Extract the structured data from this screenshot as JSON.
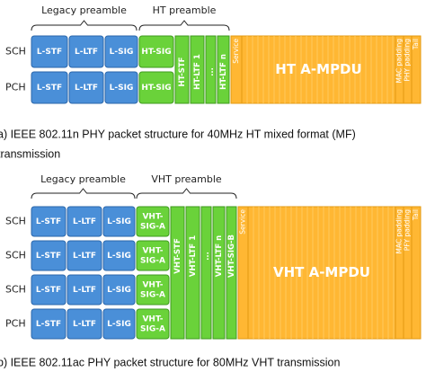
{
  "panels": [
    {
      "preamble_labels": [
        "Legacy preamble",
        "HT preamble"
      ],
      "rows": [
        "SCH",
        "PCH"
      ],
      "row_blocks": [
        "L-STF",
        "L-LTF",
        "L-SIG"
      ],
      "sig_lines": [
        "HT-SIG"
      ],
      "columns": [
        "HT-STF",
        "HT-LTF 1",
        "...",
        "HT-LTF n"
      ],
      "service": "Service",
      "payload": "HT A-MPDU",
      "tail_fields": [
        "MAC padding",
        "PHY padding",
        "Tail"
      ],
      "caption": [
        "a) IEEE 802.11n PHY packet structure for 40MHz HT mixed format (MF)",
        "transmission"
      ]
    },
    {
      "preamble_labels": [
        "Legacy preamble",
        "VHT preamble"
      ],
      "rows": [
        "SCH",
        "SCH",
        "SCH",
        "PCH"
      ],
      "row_blocks": [
        "L-STF",
        "L-LTF",
        "L-SIG"
      ],
      "sig_lines": [
        "VHT-",
        "SIG-A"
      ],
      "columns": [
        "VHT-STF",
        "VHT-LTF 1",
        "...",
        "VHT-LTF n",
        "VHT-SIG-B"
      ],
      "service": "Service",
      "payload": "VHT A-MPDU",
      "tail_fields": [
        "MAC padding",
        "PFY padding",
        "Tail"
      ],
      "caption": [
        "b) IEEE 802.11ac PHY packet structure for 80MHz VHT transmission"
      ]
    }
  ]
}
